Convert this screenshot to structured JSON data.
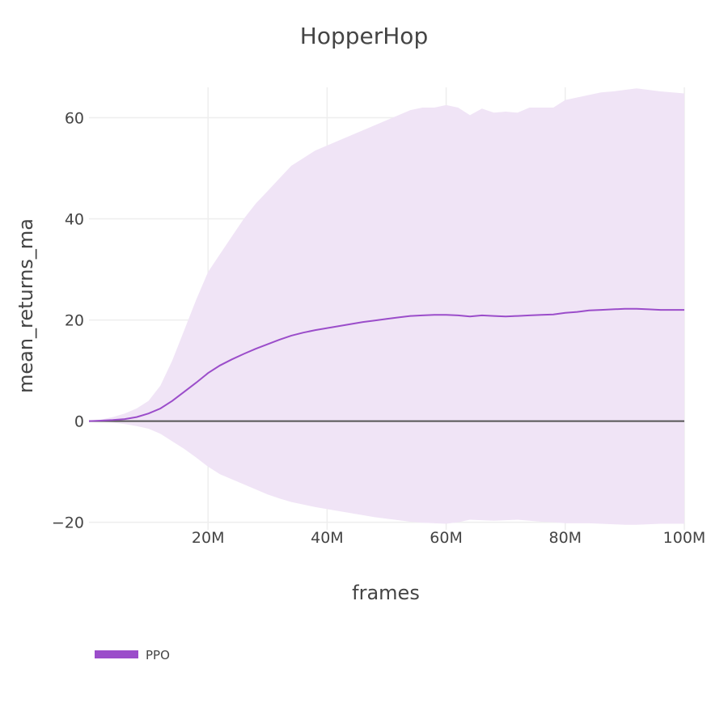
{
  "chart_data": {
    "type": "line",
    "title": "HopperHop",
    "xlabel": "frames",
    "ylabel": "mean_returns_ma",
    "xlim": [
      0,
      100000000
    ],
    "ylim": [
      -21.5,
      66
    ],
    "grid": true,
    "legend_position": "bottom-left",
    "x_ticks": [
      {
        "value": 20000000,
        "label": "20M"
      },
      {
        "value": 40000000,
        "label": "40M"
      },
      {
        "value": 60000000,
        "label": "60M"
      },
      {
        "value": 80000000,
        "label": "80M"
      },
      {
        "value": 100000000,
        "label": "100M"
      }
    ],
    "y_ticks": [
      {
        "value": -20,
        "label": "−20"
      },
      {
        "value": 0,
        "label": "0"
      },
      {
        "value": 20,
        "label": "20"
      },
      {
        "value": 40,
        "label": "40"
      },
      {
        "value": 60,
        "label": "60"
      }
    ],
    "series": [
      {
        "name": "PPO",
        "color": "#9b4dca",
        "band_color": "#f0e4f6",
        "x": [
          0,
          2000000,
          4000000,
          6000000,
          8000000,
          10000000,
          12000000,
          14000000,
          16000000,
          18000000,
          20000000,
          22000000,
          24000000,
          26000000,
          28000000,
          30000000,
          32000000,
          34000000,
          36000000,
          38000000,
          40000000,
          42000000,
          44000000,
          46000000,
          48000000,
          50000000,
          52000000,
          54000000,
          56000000,
          58000000,
          60000000,
          62000000,
          64000000,
          66000000,
          68000000,
          70000000,
          72000000,
          74000000,
          76000000,
          78000000,
          80000000,
          82000000,
          84000000,
          86000000,
          88000000,
          90000000,
          92000000,
          94000000,
          96000000,
          98000000,
          100000000
        ],
        "mean": [
          0,
          0.1,
          0.2,
          0.4,
          0.8,
          1.5,
          2.5,
          4.0,
          5.8,
          7.6,
          9.5,
          11.0,
          12.2,
          13.3,
          14.3,
          15.2,
          16.1,
          16.9,
          17.5,
          18.0,
          18.4,
          18.8,
          19.2,
          19.6,
          19.9,
          20.2,
          20.5,
          20.8,
          20.9,
          21.0,
          21.0,
          20.9,
          20.7,
          20.9,
          20.8,
          20.7,
          20.8,
          20.9,
          21.0,
          21.1,
          21.4,
          21.6,
          21.9,
          22.0,
          22.1,
          22.2,
          22.2,
          22.1,
          22.0,
          22.0,
          22.0
        ],
        "upper": [
          0,
          0.3,
          0.8,
          1.5,
          2.5,
          4.0,
          7.0,
          12.0,
          18.0,
          24.0,
          29.5,
          33.0,
          36.5,
          40.0,
          43.0,
          45.5,
          48.0,
          50.5,
          52.0,
          53.5,
          54.5,
          55.5,
          56.5,
          57.5,
          58.5,
          59.5,
          60.5,
          61.5,
          62.0,
          62.0,
          62.5,
          62.0,
          60.5,
          61.8,
          61.0,
          61.2,
          61.0,
          62.0,
          62.0,
          62.0,
          63.5,
          64.0,
          64.5,
          65.0,
          65.2,
          65.5,
          65.8,
          65.5,
          65.2,
          65.0,
          64.8
        ],
        "lower": [
          0,
          -0.1,
          -0.3,
          -0.6,
          -1.0,
          -1.5,
          -2.5,
          -4.0,
          -5.5,
          -7.2,
          -9.0,
          -10.5,
          -11.5,
          -12.5,
          -13.5,
          -14.5,
          -15.3,
          -16.0,
          -16.5,
          -17.0,
          -17.4,
          -17.8,
          -18.2,
          -18.6,
          -19.0,
          -19.3,
          -19.6,
          -19.9,
          -20.1,
          -20.2,
          -20.3,
          -20.0,
          -19.5,
          -19.6,
          -19.7,
          -19.6,
          -19.5,
          -19.7,
          -19.9,
          -20.0,
          -20.2,
          -20.2,
          -20.2,
          -20.3,
          -20.4,
          -20.5,
          -20.5,
          -20.4,
          -20.3,
          -20.3,
          -20.3
        ]
      }
    ]
  }
}
